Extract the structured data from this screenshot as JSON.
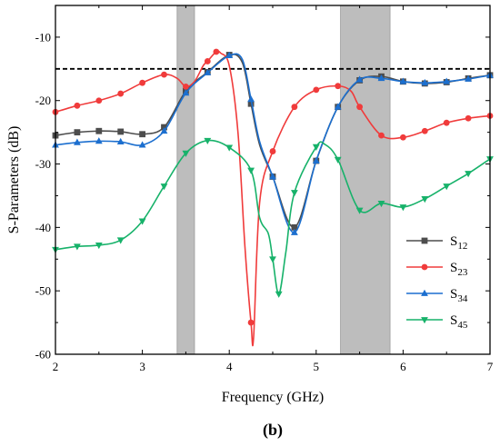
{
  "panel_label": "(b)",
  "chart_data": {
    "type": "line",
    "xlabel": "Frequency (GHz)",
    "ylabel": "S-Parameters (dB)",
    "xlim": [
      2,
      7
    ],
    "ylim": [
      -60,
      -5
    ],
    "xticks": [
      2,
      3,
      4,
      5,
      6,
      7
    ],
    "yticks": [
      -60,
      -50,
      -40,
      -30,
      -20,
      -10
    ],
    "grid": false,
    "legend_position": "bottom-right",
    "threshold": {
      "value": -15,
      "style": "dashed",
      "color": "#000000"
    },
    "shaded_bands": [
      [
        3.4,
        3.6
      ],
      [
        5.28,
        5.85
      ]
    ],
    "band_color": "#bdbdbd",
    "series": [
      {
        "name": "S12",
        "name_base": "S",
        "name_sub": "12",
        "color": "#4d4d4d",
        "marker": "square",
        "x": [
          2.0,
          2.25,
          2.5,
          2.75,
          3.0,
          3.25,
          3.5,
          3.75,
          4.0,
          4.15,
          4.25,
          4.35,
          4.5,
          4.75,
          5.0,
          5.25,
          5.5,
          5.75,
          6.0,
          6.25,
          6.5,
          6.75,
          7.0
        ],
        "y": [
          -25.5,
          -25.0,
          -24.8,
          -24.9,
          -25.3,
          -24.2,
          -18.5,
          -15.5,
          -12.8,
          -14.0,
          -20.5,
          -27.0,
          -32.0,
          -40.0,
          -29.5,
          -21.0,
          -16.8,
          -16.2,
          -17.0,
          -17.3,
          -17.1,
          -16.5,
          -16.0
        ],
        "markers_at": [
          2.0,
          2.25,
          2.5,
          2.75,
          3.0,
          3.25,
          3.5,
          3.75,
          4.0,
          4.25,
          4.5,
          4.75,
          5.0,
          5.25,
          5.5,
          5.75,
          6.0,
          6.25,
          6.5,
          6.75,
          7.0
        ]
      },
      {
        "name": "S23",
        "name_base": "S",
        "name_sub": "23",
        "color": "#f03b3b",
        "marker": "circle",
        "x": [
          2.0,
          2.25,
          2.5,
          2.75,
          3.0,
          3.25,
          3.4,
          3.5,
          3.6,
          3.7,
          3.75,
          3.85,
          3.9,
          4.0,
          4.1,
          4.18,
          4.25,
          4.28,
          4.35,
          4.5,
          4.75,
          5.0,
          5.25,
          5.4,
          5.5,
          5.75,
          6.0,
          6.25,
          6.5,
          6.75,
          7.0
        ],
        "y": [
          -21.8,
          -20.8,
          -20.0,
          -18.9,
          -17.2,
          -15.9,
          -16.5,
          -17.8,
          -17.0,
          -14.5,
          -13.8,
          -12.3,
          -12.5,
          -14.5,
          -25.0,
          -43.0,
          -55.0,
          -57.3,
          -36.0,
          -28.0,
          -21.0,
          -18.3,
          -17.7,
          -18.5,
          -21.0,
          -25.5,
          -25.8,
          -24.8,
          -23.5,
          -22.8,
          -22.4
        ],
        "markers_at": [
          2.0,
          2.25,
          2.5,
          2.75,
          3.0,
          3.25,
          3.5,
          3.75,
          3.85,
          4.25,
          4.5,
          4.75,
          5.0,
          5.25,
          5.5,
          5.75,
          6.0,
          6.25,
          6.5,
          6.75,
          7.0
        ]
      },
      {
        "name": "S34",
        "name_base": "S",
        "name_sub": "34",
        "color": "#1c6fcf",
        "marker": "triangle-up",
        "x": [
          2.0,
          2.25,
          2.5,
          2.75,
          3.0,
          3.25,
          3.5,
          3.75,
          4.0,
          4.15,
          4.25,
          4.35,
          4.5,
          4.75,
          5.0,
          5.25,
          5.5,
          5.75,
          6.0,
          6.25,
          6.5,
          6.75,
          7.0
        ],
        "y": [
          -27.0,
          -26.6,
          -26.4,
          -26.5,
          -27.0,
          -24.8,
          -18.8,
          -15.6,
          -12.9,
          -13.5,
          -19.8,
          -26.5,
          -32.0,
          -40.8,
          -29.5,
          -21.0,
          -16.7,
          -16.5,
          -17.0,
          -17.2,
          -17.0,
          -16.6,
          -16.0
        ],
        "markers_at": [
          2.0,
          2.25,
          2.5,
          2.75,
          3.0,
          3.25,
          3.5,
          3.75,
          4.0,
          4.25,
          4.5,
          4.75,
          5.0,
          5.25,
          5.5,
          5.75,
          6.0,
          6.25,
          6.5,
          6.75,
          7.0
        ]
      },
      {
        "name": "S45",
        "name_base": "S",
        "name_sub": "45",
        "color": "#17b26a",
        "marker": "triangle-down",
        "x": [
          2.0,
          2.25,
          2.5,
          2.75,
          3.0,
          3.25,
          3.5,
          3.75,
          4.0,
          4.25,
          4.35,
          4.45,
          4.5,
          4.57,
          4.65,
          4.75,
          5.0,
          5.1,
          5.25,
          5.5,
          5.75,
          6.0,
          6.25,
          6.5,
          6.75,
          7.0
        ],
        "y": [
          -43.5,
          -43.0,
          -42.8,
          -42.0,
          -39.0,
          -33.5,
          -28.3,
          -26.3,
          -27.4,
          -31.0,
          -38.5,
          -41.0,
          -45.0,
          -50.5,
          -44.0,
          -34.5,
          -27.3,
          -26.9,
          -29.3,
          -37.3,
          -36.2,
          -36.8,
          -35.5,
          -33.5,
          -31.5,
          -29.2
        ],
        "markers_at": [
          2.0,
          2.25,
          2.5,
          2.75,
          3.0,
          3.25,
          3.5,
          3.75,
          4.0,
          4.25,
          4.5,
          4.57,
          4.75,
          5.0,
          5.25,
          5.5,
          5.75,
          6.0,
          6.25,
          6.5,
          6.75,
          7.0
        ]
      }
    ]
  }
}
